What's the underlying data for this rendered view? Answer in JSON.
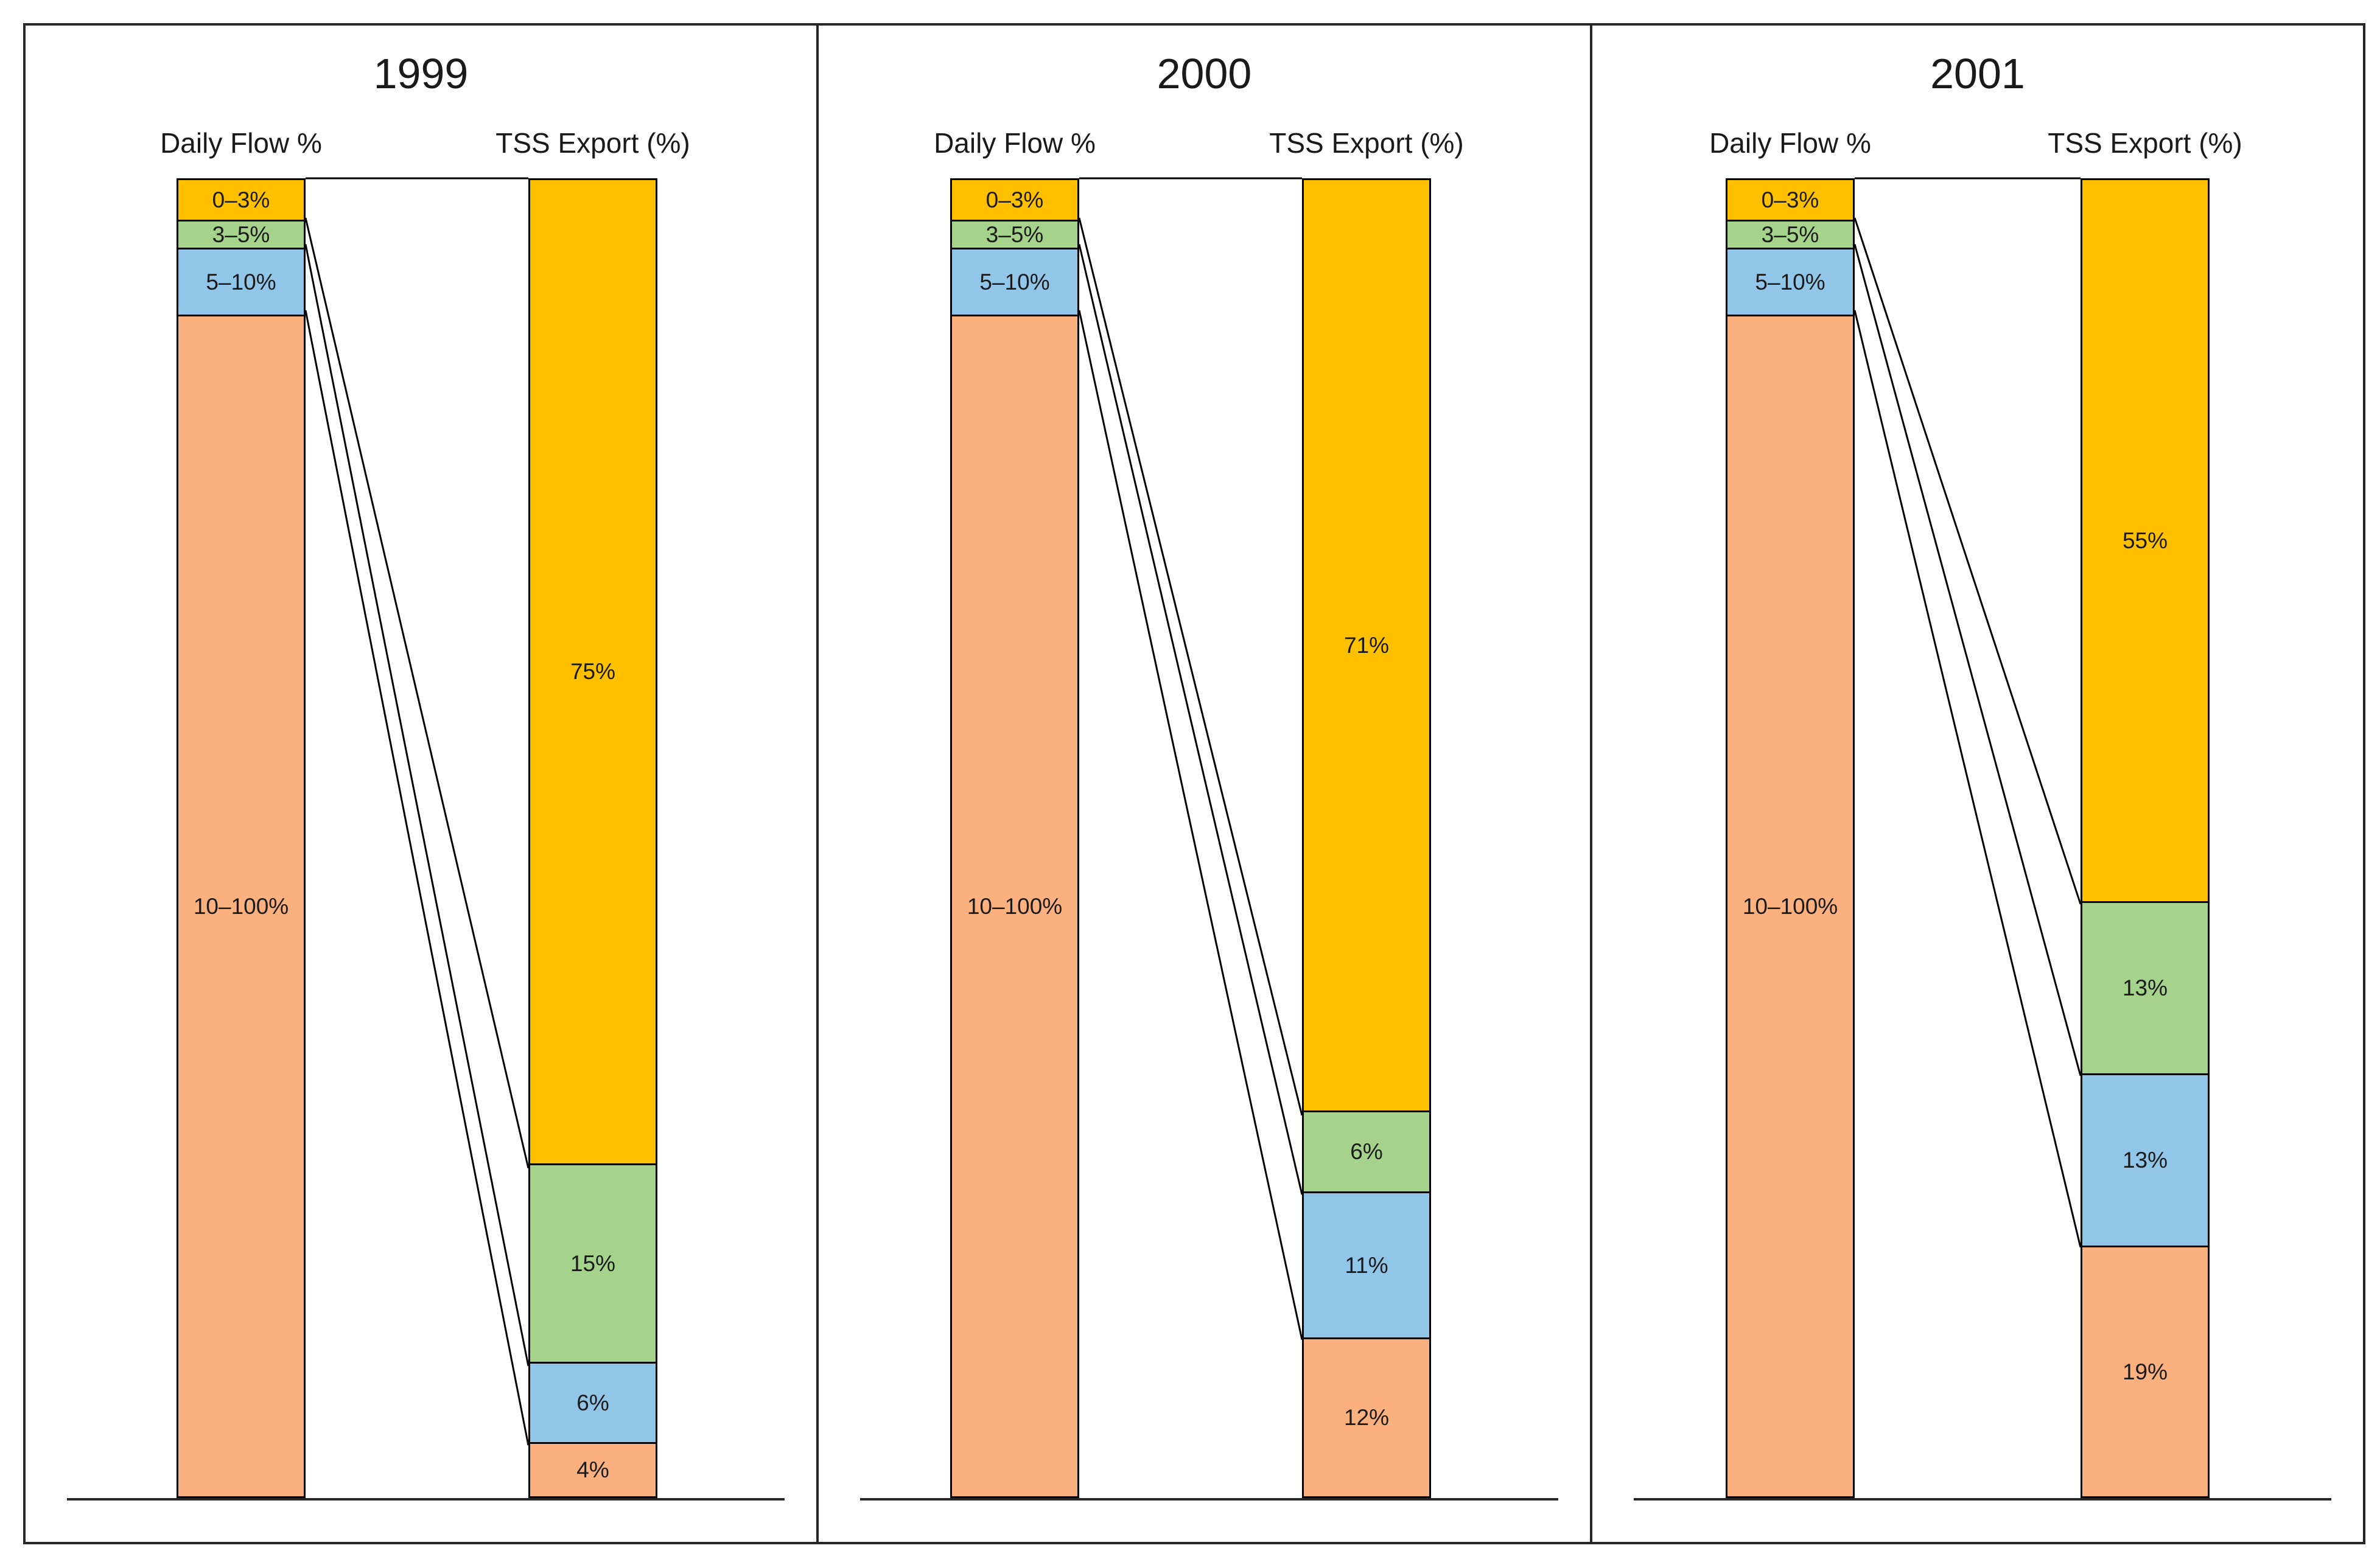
{
  "colors": {
    "band1": "#FFC000",
    "band2": "#A6D38C",
    "band3": "#92C6E9",
    "band4": "#FAB07F",
    "text": "#1A1A1A",
    "line": "#000000",
    "frame": "#262626",
    "background": "#FFFFFF"
  },
  "flow_bands": [
    {
      "label": "0–3%",
      "height_pct": 3,
      "color_key": "band1"
    },
    {
      "label": "3–5%",
      "height_pct": 2,
      "color_key": "band2"
    },
    {
      "label": "5–10%",
      "height_pct": 5,
      "color_key": "band3"
    },
    {
      "label": "10–100%",
      "height_pct": 90,
      "color_key": "band4"
    }
  ],
  "panels": [
    {
      "title": "1999",
      "left_axis_label": "Daily Flow %",
      "right_axis_label": "TSS Export (%)",
      "tss_segments": [
        {
          "label": "75%",
          "value": 75,
          "color_key": "band1"
        },
        {
          "label": "15%",
          "value": 15,
          "color_key": "band2"
        },
        {
          "label": "6%",
          "value": 6,
          "color_key": "band3"
        },
        {
          "label": "4%",
          "value": 4,
          "color_key": "band4"
        }
      ]
    },
    {
      "title": "2000",
      "left_axis_label": "Daily Flow %",
      "right_axis_label": "TSS Export (%)",
      "tss_segments": [
        {
          "label": "71%",
          "value": 71,
          "color_key": "band1"
        },
        {
          "label": "6%",
          "value": 6,
          "color_key": "band2"
        },
        {
          "label": "11%",
          "value": 11,
          "color_key": "band3"
        },
        {
          "label": "12%",
          "value": 12,
          "color_key": "band4"
        }
      ]
    },
    {
      "title": "2001",
      "left_axis_label": "Daily Flow %",
      "right_axis_label": "TSS Export (%)",
      "tss_segments": [
        {
          "label": "55%",
          "value": 55,
          "color_key": "band1"
        },
        {
          "label": "13%",
          "value": 13,
          "color_key": "band2"
        },
        {
          "label": "13%",
          "value": 13,
          "color_key": "band3"
        },
        {
          "label": "19%",
          "value": 19,
          "color_key": "band4"
        }
      ]
    }
  ],
  "chart_data": {
    "type": "bar",
    "subtype": "paired 100% stacked columns per year, flow bands linked to TSS export shares by connector lines",
    "categories": [
      "0–3%",
      "3–5%",
      "5–10%",
      "10–100%"
    ],
    "columns_per_panel": [
      "Daily Flow %",
      "TSS Export (%)"
    ],
    "daily_flow_segment_heights_pct_est": [
      3,
      2,
      5,
      90
    ],
    "panels": [
      {
        "title": "1999",
        "tss_export_pct": [
          75,
          15,
          6,
          4
        ]
      },
      {
        "title": "2000",
        "tss_export_pct": [
          71,
          6,
          11,
          12
        ]
      },
      {
        "title": "2001",
        "tss_export_pct": [
          55,
          13,
          13,
          19
        ]
      }
    ],
    "colors": [
      "#FFC000",
      "#A6D38C",
      "#92C6E9",
      "#FAB07F"
    ],
    "legend": "none",
    "ylim": [
      0,
      100
    ],
    "grid": false
  }
}
